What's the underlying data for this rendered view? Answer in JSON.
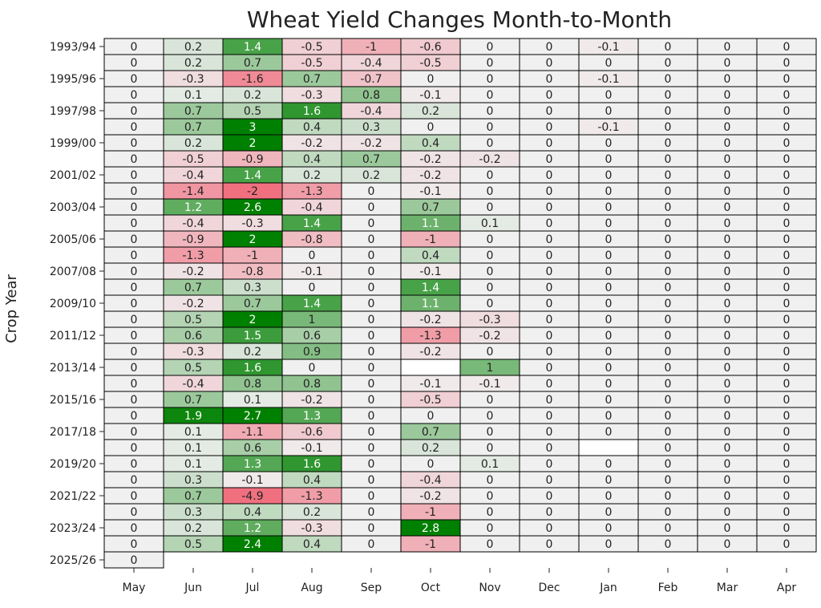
{
  "chart_data": {
    "type": "heatmap",
    "title": "Wheat Yield Changes Month-to-Month",
    "ylabel": "Crop Year",
    "xlabel": "",
    "months": [
      "May",
      "Jun",
      "Jul",
      "Aug",
      "Sep",
      "Oct",
      "Nov",
      "Dec",
      "Jan",
      "Feb",
      "Mar",
      "Apr"
    ],
    "rows": [
      "1993/94",
      "1994/95",
      "1995/96",
      "1996/97",
      "1997/98",
      "1998/99",
      "1999/00",
      "2000/01",
      "2001/02",
      "2002/03",
      "2003/04",
      "2004/05",
      "2005/06",
      "2006/07",
      "2007/08",
      "2008/09",
      "2009/10",
      "2010/11",
      "2011/12",
      "2012/13",
      "2013/14",
      "2014/15",
      "2015/16",
      "2016/17",
      "2017/18",
      "2018/19",
      "2019/20",
      "2020/21",
      "2021/22",
      "2022/23",
      "2023/24",
      "2024/25",
      "2025/26"
    ],
    "yticks_shown": [
      "1993/94",
      "1995/96",
      "1997/98",
      "1999/00",
      "2001/02",
      "2003/04",
      "2005/06",
      "2007/08",
      "2009/10",
      "2011/12",
      "2013/14",
      "2015/16",
      "2017/18",
      "2019/20",
      "2021/22",
      "2023/24",
      "2025/26"
    ],
    "values": [
      [
        0,
        0.2,
        1.4,
        -0.5,
        -1,
        -0.6,
        0,
        0,
        -0.1,
        0,
        0,
        0
      ],
      [
        0,
        0.2,
        0.7,
        -0.5,
        -0.4,
        -0.5,
        0,
        0,
        0,
        0,
        0,
        0
      ],
      [
        0,
        -0.3,
        -1.6,
        0.7,
        -0.7,
        0,
        0,
        0,
        -0.1,
        0,
        0,
        0
      ],
      [
        0,
        0.1,
        0.2,
        -0.3,
        0.8,
        -0.1,
        0,
        0,
        0,
        0,
        0,
        0
      ],
      [
        0,
        0.7,
        0.5,
        1.6,
        -0.4,
        0.2,
        0,
        0,
        0,
        0,
        0,
        0
      ],
      [
        0,
        0.7,
        3,
        0.4,
        0.3,
        0,
        0,
        0,
        -0.1,
        0,
        0,
        0
      ],
      [
        0,
        0.2,
        2,
        -0.2,
        -0.2,
        0.4,
        0,
        0,
        0,
        0,
        0,
        0
      ],
      [
        0,
        -0.5,
        -0.9,
        0.4,
        0.7,
        -0.2,
        -0.2,
        0,
        0,
        0,
        0,
        0
      ],
      [
        0,
        -0.4,
        1.4,
        0.2,
        0.2,
        -0.2,
        0,
        0,
        0,
        0,
        0,
        0
      ],
      [
        0,
        -1.4,
        -2,
        -1.3,
        0,
        -0.1,
        0,
        0,
        0,
        0,
        0,
        0
      ],
      [
        0,
        1.2,
        2.6,
        -0.4,
        0,
        0.7,
        0,
        0,
        0,
        0,
        0,
        0
      ],
      [
        0,
        -0.4,
        -0.3,
        1.4,
        0,
        1.1,
        0.1,
        0,
        0,
        0,
        0,
        0
      ],
      [
        0,
        -0.9,
        2,
        -0.8,
        0,
        -1,
        0,
        0,
        0,
        0,
        0,
        0
      ],
      [
        0,
        -1.3,
        -1,
        0,
        0,
        0.4,
        0,
        0,
        0,
        0,
        0,
        0
      ],
      [
        0,
        -0.2,
        -0.8,
        -0.1,
        0,
        -0.1,
        0,
        0,
        0,
        0,
        0,
        0
      ],
      [
        0,
        0.7,
        0.3,
        0,
        0,
        1.4,
        0,
        0,
        0,
        0,
        0,
        0
      ],
      [
        0,
        -0.2,
        0.7,
        1.4,
        0,
        1.1,
        0,
        0,
        0,
        0,
        0,
        0
      ],
      [
        0,
        0.5,
        2,
        1,
        0,
        -0.2,
        -0.3,
        0,
        0,
        0,
        0,
        0
      ],
      [
        0,
        0.6,
        1.5,
        0.6,
        0,
        -1.3,
        -0.2,
        0,
        0,
        0,
        0,
        0
      ],
      [
        0,
        -0.3,
        0.2,
        0.9,
        0,
        -0.2,
        0,
        0,
        0,
        0,
        0,
        0
      ],
      [
        0,
        0.5,
        1.6,
        0,
        0,
        null,
        1,
        0,
        0,
        0,
        0,
        0
      ],
      [
        0,
        -0.4,
        0.8,
        0.8,
        0,
        -0.1,
        -0.1,
        0,
        0,
        0,
        0,
        0
      ],
      [
        0,
        0.7,
        0.1,
        -0.2,
        0,
        -0.5,
        0,
        0,
        0,
        0,
        0,
        0
      ],
      [
        0,
        1.9,
        2.7,
        1.3,
        0,
        0,
        0,
        0,
        0,
        0,
        0,
        0
      ],
      [
        0,
        0.1,
        -1.1,
        -0.6,
        0,
        0.7,
        0,
        0,
        0,
        0,
        0,
        0
      ],
      [
        0,
        0.1,
        0.6,
        -0.1,
        0,
        0.2,
        0,
        0,
        null,
        0,
        0,
        0
      ],
      [
        0,
        0.1,
        1.3,
        1.6,
        0,
        0,
        0.1,
        0,
        0,
        0,
        0,
        0
      ],
      [
        0,
        0.3,
        -0.1,
        0.4,
        0,
        -0.4,
        0,
        0,
        0,
        0,
        0,
        0
      ],
      [
        0,
        0.7,
        -4.9,
        -1.3,
        0,
        -0.2,
        0,
        0,
        0,
        0,
        0,
        0
      ],
      [
        0,
        0.3,
        0.4,
        0.2,
        0,
        -1,
        0,
        0,
        0,
        0,
        0,
        0
      ],
      [
        0,
        0.2,
        1.2,
        -0.3,
        0,
        2.8,
        0,
        0,
        0,
        0,
        0,
        0
      ],
      [
        0,
        0.5,
        2.4,
        0.4,
        0,
        -1,
        0,
        0,
        0,
        0,
        0,
        0
      ],
      [
        0,
        null,
        null,
        null,
        null,
        null,
        null,
        null,
        null,
        null,
        null,
        null
      ]
    ],
    "colors": {
      "neutral": "#f0f0f0",
      "positive": "#008000",
      "negative": "#f07080",
      "grid": "#000000"
    },
    "color_scale_saturation": 2.0
  }
}
